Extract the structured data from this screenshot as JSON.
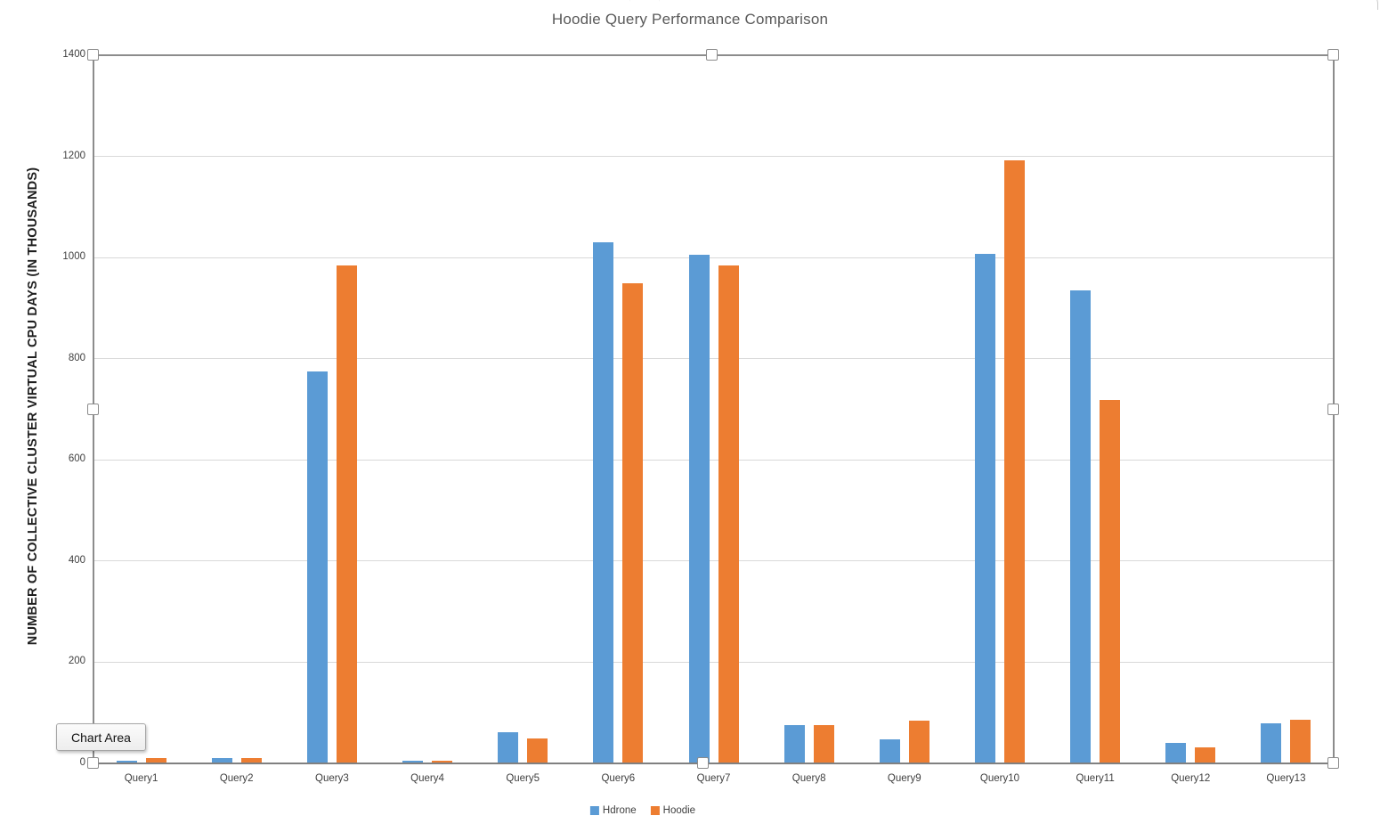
{
  "overlay": {
    "tooltip": "Chart Area"
  },
  "chart_data": {
    "type": "bar",
    "title": "Hoodie Query Performance Comparison",
    "ylabel": "NUMBER OF COLLECTIVE CLUSTER VIRTUAL CPU DAYS (IN THOUSANDS)",
    "xlabel": "",
    "categories": [
      "Query1",
      "Query2",
      "Query3",
      "Query4",
      "Query5",
      "Query6",
      "Query7",
      "Query8",
      "Query9",
      "Query10",
      "Query11",
      "Query12",
      "Query13"
    ],
    "series": [
      {
        "name": "Hdrone",
        "color": "#5B9BD5",
        "values": [
          5,
          10,
          775,
          5,
          62,
          1030,
          1005,
          75,
          47,
          1008,
          935,
          40,
          80
        ]
      },
      {
        "name": "Hoodie",
        "color": "#ED7D31",
        "values": [
          10,
          10,
          985,
          5,
          50,
          950,
          985,
          75,
          85,
          1193,
          718,
          32,
          87
        ]
      }
    ],
    "ylim": [
      0,
      1400
    ],
    "yticks": [
      0,
      200,
      400,
      600,
      800,
      1000,
      1200,
      1400
    ],
    "grid": true,
    "legend_position": "bottom",
    "selection": {
      "handles": 8,
      "state": "chart-selected"
    }
  }
}
